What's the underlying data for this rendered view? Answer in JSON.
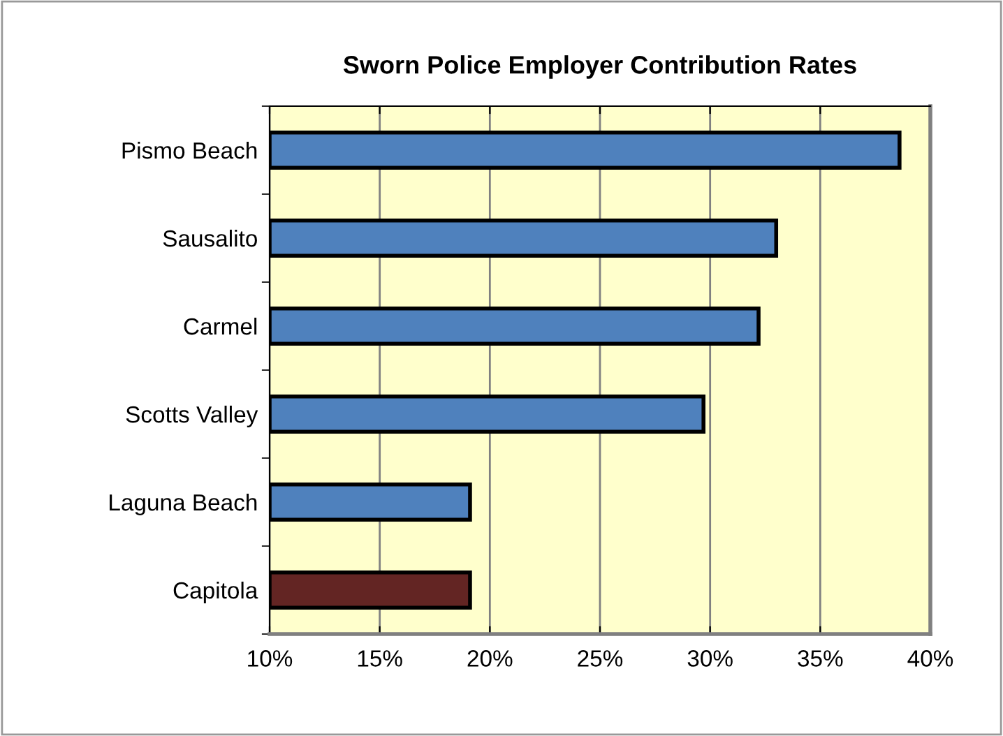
{
  "chart_data": {
    "type": "bar",
    "orientation": "horizontal",
    "title": "Sworn Police Employer Contribution Rates",
    "categories": [
      "Pismo Beach",
      "Sausalito",
      "Carmel",
      "Scotts Valley",
      "Laguna Beach",
      "Capitola"
    ],
    "values": [
      38.6,
      33.0,
      32.2,
      29.7,
      19.1,
      19.1
    ],
    "colors": [
      "#4f81bd",
      "#4f81bd",
      "#4f81bd",
      "#4f81bd",
      "#4f81bd",
      "#632523"
    ],
    "xlim": [
      10,
      40
    ],
    "xticks": [
      {
        "value": 10,
        "label": "10%"
      },
      {
        "value": 15,
        "label": "15%"
      },
      {
        "value": 20,
        "label": "20%"
      },
      {
        "value": 25,
        "label": "25%"
      },
      {
        "value": 30,
        "label": "30%"
      },
      {
        "value": 35,
        "label": "35%"
      },
      {
        "value": 40,
        "label": "40%"
      }
    ],
    "grid": "x"
  }
}
